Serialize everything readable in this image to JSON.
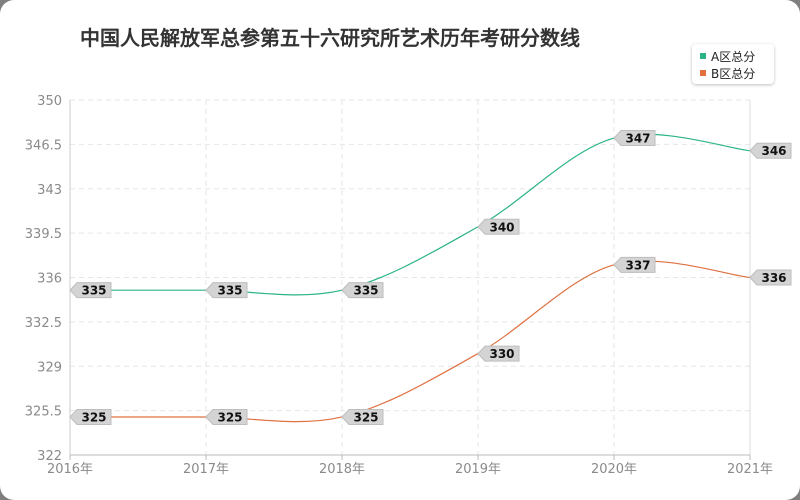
{
  "chart_data": {
    "type": "line",
    "title": "中国人民解放军总参第五十六研究所艺术历年考研分数线",
    "categories": [
      "2016年",
      "2017年",
      "2018年",
      "2019年",
      "2020年",
      "2021年"
    ],
    "series": [
      {
        "name": "A区总分",
        "values": [
          335,
          335,
          335,
          340,
          347,
          346
        ],
        "color": "#2bb38a"
      },
      {
        "name": "B区总分",
        "values": [
          325,
          325,
          325,
          330,
          337,
          336
        ],
        "color": "#e07040"
      }
    ],
    "ylim": [
      322,
      350
    ],
    "yticks": [
      "322",
      "325.5",
      "329",
      "332.5",
      "336",
      "339.5",
      "343",
      "346.5",
      "350"
    ],
    "grid": true,
    "legend_position": "top-right"
  }
}
